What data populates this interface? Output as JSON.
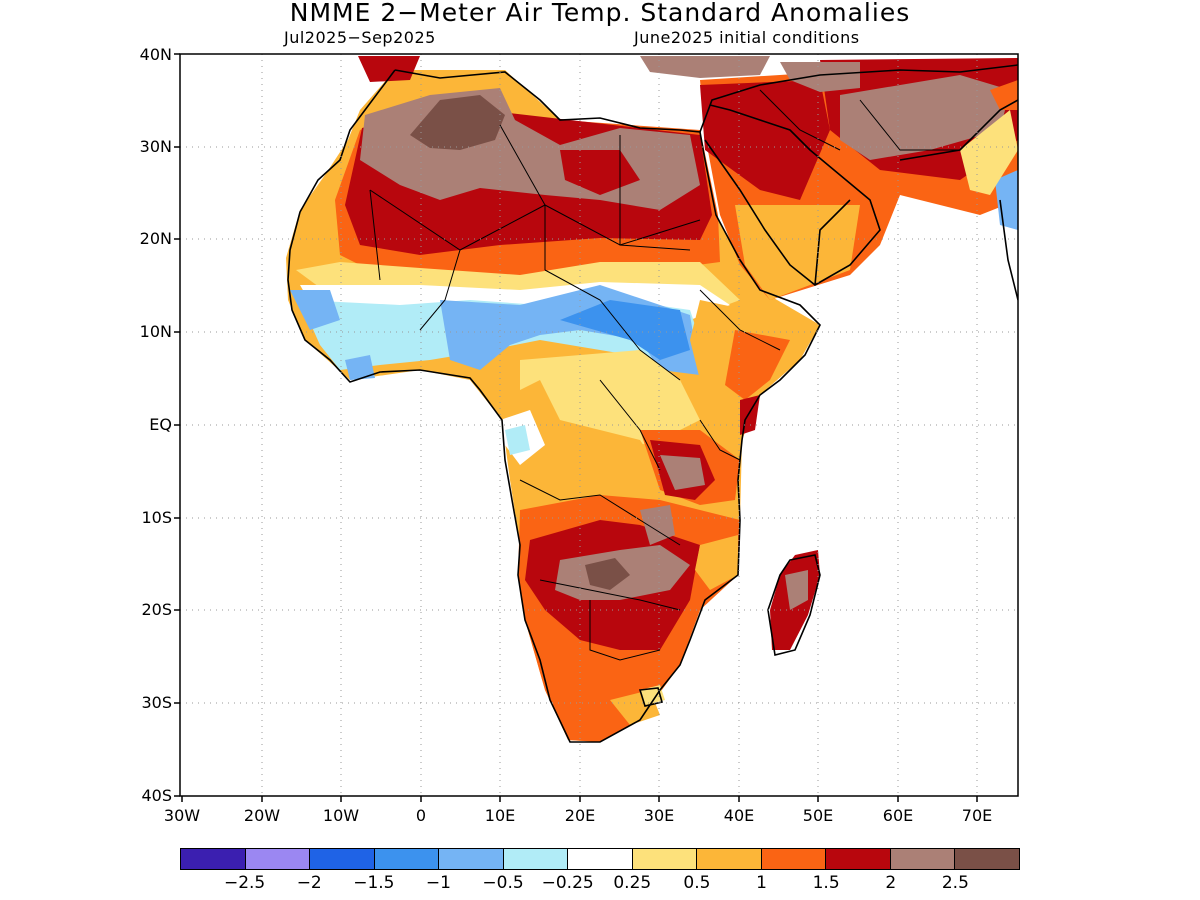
{
  "title": "NMME 2−Meter Air Temp. Standard Anomalies",
  "subtitle_left": "Jul2025−Sep2025",
  "subtitle_right": "June2025 initial conditions",
  "lat_labels": [
    "40N",
    "30N",
    "20N",
    "10N",
    "EQ",
    "10S",
    "20S",
    "30S",
    "40S"
  ],
  "lon_labels": [
    "30W",
    "20W",
    "10W",
    "0",
    "10E",
    "20E",
    "30E",
    "40E",
    "50E",
    "60E",
    "70E"
  ],
  "legend": {
    "colors": [
      "#3b1fb0",
      "#9b87f2",
      "#1f63e6",
      "#3c92ee",
      "#75b4f4",
      "#b1ecf7",
      "#ffffff",
      "#fde17b",
      "#fcb638",
      "#fa6414",
      "#b8060d",
      "#ab8076",
      "#7a5047"
    ],
    "labels": [
      "−2.5",
      "−2",
      "−1.5",
      "−1",
      "−0.5",
      "−0.25",
      "0.25",
      "0.5",
      "1",
      "1.5",
      "2",
      "2.5"
    ]
  },
  "anomaly_levels": [
    -2.5,
    -2,
    -1.5,
    -1,
    -0.5,
    -0.25,
    0.25,
    0.5,
    1,
    1.5,
    2,
    2.5
  ],
  "map_extent": {
    "lon": [
      -30,
      75
    ],
    "lat": [
      -40,
      40
    ]
  }
}
